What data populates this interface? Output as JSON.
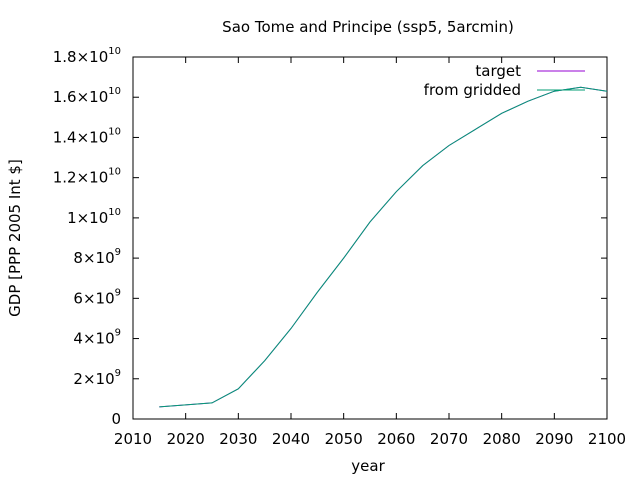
{
  "chart_data": {
    "type": "line",
    "title": "Sao Tome and Principe (ssp5, 5arcmin)",
    "xlabel": "year",
    "ylabel": "GDP [PPP 2005 Int $]",
    "xlim": [
      2010,
      2100
    ],
    "ylim": [
      0,
      18000000000
    ],
    "grid": false,
    "legend_position": "top-right",
    "x_ticks": [
      {
        "value": 2010,
        "label": "2010"
      },
      {
        "value": 2020,
        "label": "2020"
      },
      {
        "value": 2030,
        "label": "2030"
      },
      {
        "value": 2040,
        "label": "2040"
      },
      {
        "value": 2050,
        "label": "2050"
      },
      {
        "value": 2060,
        "label": "2060"
      },
      {
        "value": 2070,
        "label": "2070"
      },
      {
        "value": 2080,
        "label": "2080"
      },
      {
        "value": 2090,
        "label": "2090"
      },
      {
        "value": 2100,
        "label": "2100"
      }
    ],
    "y_ticks": [
      {
        "value": 0,
        "base": "0",
        "exp": ""
      },
      {
        "value": 2000000000,
        "base": "2×10",
        "exp": "9"
      },
      {
        "value": 4000000000,
        "base": "4×10",
        "exp": "9"
      },
      {
        "value": 6000000000,
        "base": "6×10",
        "exp": "9"
      },
      {
        "value": 8000000000,
        "base": "8×10",
        "exp": "9"
      },
      {
        "value": 10000000000,
        "base": "1×10",
        "exp": "10"
      },
      {
        "value": 12000000000,
        "base": "1.2×10",
        "exp": "10"
      },
      {
        "value": 14000000000,
        "base": "1.4×10",
        "exp": "10"
      },
      {
        "value": 16000000000,
        "base": "1.6×10",
        "exp": "10"
      },
      {
        "value": 18000000000,
        "base": "1.8×10",
        "exp": "10"
      }
    ],
    "series": [
      {
        "name": "target",
        "color": "#9400d3",
        "x": [
          2015,
          2020,
          2025,
          2030,
          2035,
          2040,
          2045,
          2050,
          2055,
          2060,
          2065,
          2070,
          2075,
          2080,
          2085,
          2090,
          2095,
          2100
        ],
        "y": [
          600000000,
          700000000,
          800000000,
          1500000000,
          2900000000,
          4500000000,
          6300000000,
          8000000000,
          9800000000,
          11300000000,
          12600000000,
          13600000000,
          14400000000,
          15200000000,
          15800000000,
          16300000000,
          16500000000,
          16300000000
        ]
      },
      {
        "name": "from gridded",
        "color": "#009e73",
        "x": [
          2015,
          2020,
          2025,
          2030,
          2035,
          2040,
          2045,
          2050,
          2055,
          2060,
          2065,
          2070,
          2075,
          2080,
          2085,
          2090,
          2095,
          2100
        ],
        "y": [
          600000000,
          700000000,
          800000000,
          1500000000,
          2900000000,
          4500000000,
          6300000000,
          8000000000,
          9800000000,
          11300000000,
          12600000000,
          13600000000,
          14400000000,
          15200000000,
          15800000000,
          16300000000,
          16500000000,
          16300000000
        ]
      }
    ]
  }
}
